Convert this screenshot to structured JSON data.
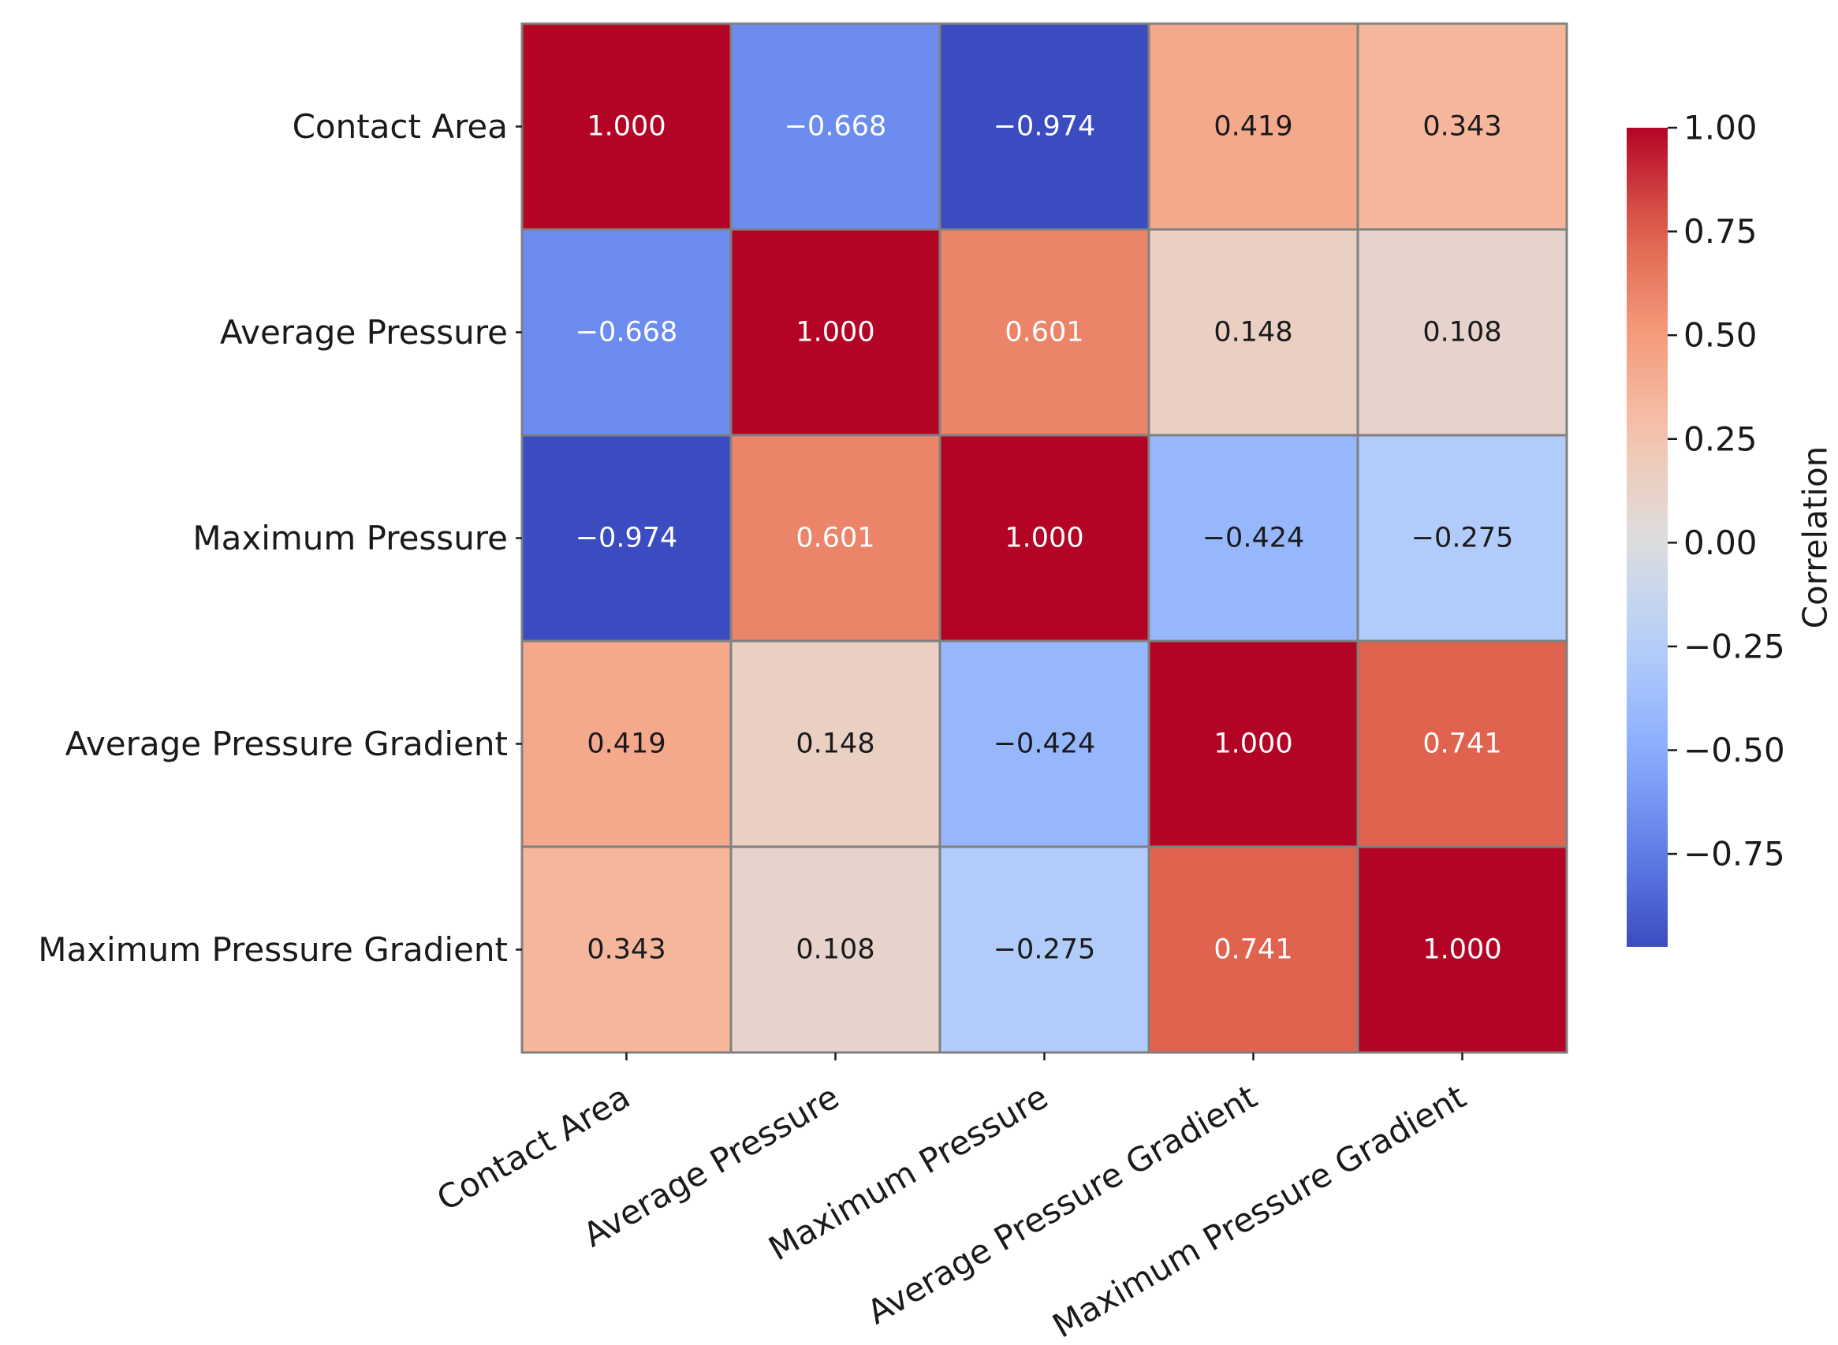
{
  "chart_data": {
    "type": "heatmap",
    "title": "",
    "xlabel": "",
    "ylabel": "",
    "x_categories": [
      "Contact Area",
      "Average Pressure",
      "Maximum Pressure",
      "Average Pressure Gradient",
      "Maximum Pressure Gradient"
    ],
    "y_categories": [
      "Contact Area",
      "Average Pressure",
      "Maximum Pressure",
      "Average Pressure Gradient",
      "Maximum Pressure Gradient"
    ],
    "values": [
      [
        1.0,
        -0.668,
        -0.974,
        0.419,
        0.343
      ],
      [
        -0.668,
        1.0,
        0.601,
        0.148,
        0.108
      ],
      [
        -0.974,
        0.601,
        1.0,
        -0.424,
        -0.275
      ],
      [
        0.419,
        0.148,
        -0.424,
        1.0,
        0.741
      ],
      [
        0.343,
        0.108,
        -0.275,
        0.741,
        1.0
      ]
    ],
    "value_labels": [
      [
        "1.000",
        "−0.668",
        "−0.974",
        "0.419",
        "0.343"
      ],
      [
        "−0.668",
        "1.000",
        "0.601",
        "0.148",
        "0.108"
      ],
      [
        "−0.974",
        "0.601",
        "1.000",
        "−0.424",
        "−0.275"
      ],
      [
        "0.419",
        "0.148",
        "−0.424",
        "1.000",
        "0.741"
      ],
      [
        "0.343",
        "0.108",
        "−0.275",
        "0.741",
        "1.000"
      ]
    ],
    "colormap": "coolwarm",
    "color_range": [
      -0.974,
      1.0
    ],
    "colorbar": {
      "label": "Correlation",
      "ticks": [
        1.0,
        0.75,
        0.5,
        0.25,
        0.0,
        -0.25,
        -0.5,
        -0.75
      ],
      "tick_labels": [
        "1.00",
        "0.75",
        "0.50",
        "0.25",
        "0.00",
        "−0.25",
        "−0.50",
        "−0.75"
      ]
    },
    "grid_color": "#808080",
    "grid": false,
    "legend_position": "right"
  }
}
